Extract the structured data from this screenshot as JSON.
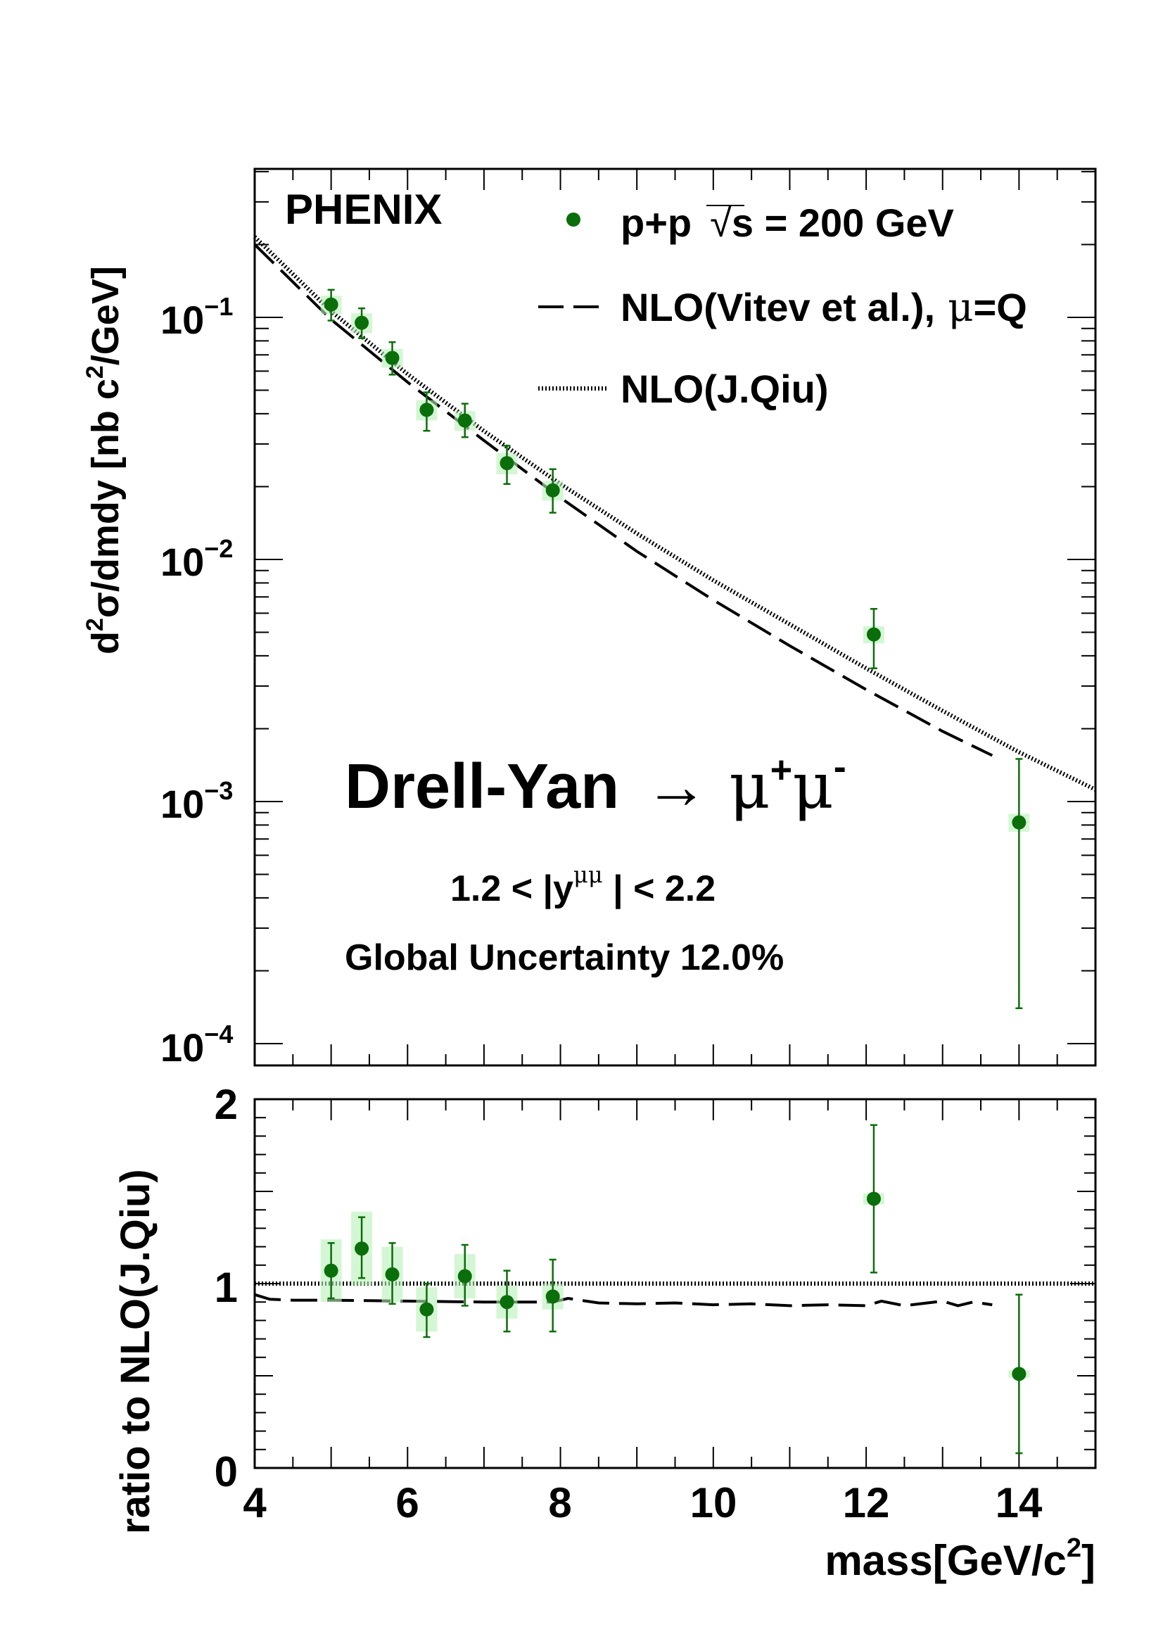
{
  "chart_data": [
    {
      "type": "scatter",
      "yscale": "log",
      "xlim": [
        4,
        15
      ],
      "ylim": [
        0.0001,
        0.42
      ],
      "ylabel": "d²σ/dmdy [nb c²/GeV]",
      "ylabel_parts": {
        "a": "d",
        "b": "2",
        "c": "σ/dmdy [nb c",
        "d": "2",
        "e": "/GeV]"
      },
      "ytick_labels": [
        {
          "value": 0.1,
          "base": "10",
          "exp": "−1"
        },
        {
          "value": 0.01,
          "base": "10",
          "exp": "−2"
        },
        {
          "value": 0.001,
          "base": "10",
          "exp": "−3"
        },
        {
          "value": 0.0001,
          "base": "10",
          "exp": "−4"
        }
      ],
      "annotations": {
        "experiment": "PHENIX",
        "process_main": "Drell-Yan",
        "process_arrow": "→",
        "process_mu1": "μ",
        "process_plus": "+",
        "process_mu2": "μ",
        "process_minus": "-",
        "cut_left": "1.2 < |y",
        "cut_sup": "μμ",
        "cut_right": " | < 2.2",
        "global_uncertainty": "Global Uncertainty 12.0%"
      },
      "legend": {
        "placement": "top-right",
        "data_label_a": "p+p",
        "data_label_sqrt": "√",
        "data_label_b": "s = 200 GeV",
        "vitev_label_a": "NLO(Vitev et al.),",
        "vitev_label_mu": "μ",
        "vitev_label_b": "=Q",
        "qiu_label": "NLO(J.Qiu)"
      },
      "data_points": [
        {
          "x": 5.0,
          "y": 0.113,
          "err_low": 0.016,
          "err_high": 0.017,
          "sys_low": 0.01,
          "sys_high": 0.01
        },
        {
          "x": 5.4,
          "y": 0.095,
          "err_low": 0.013,
          "err_high": 0.014,
          "sys_low": 0.009,
          "sys_high": 0.009
        },
        {
          "x": 5.8,
          "y": 0.068,
          "err_low": 0.01,
          "err_high": 0.011,
          "sys_low": 0.006,
          "sys_high": 0.006
        },
        {
          "x": 6.25,
          "y": 0.0415,
          "err_low": 0.0075,
          "err_high": 0.0075,
          "sys_low": 0.004,
          "sys_high": 0.004
        },
        {
          "x": 6.75,
          "y": 0.0375,
          "err_low": 0.0055,
          "err_high": 0.0065,
          "sys_low": 0.0035,
          "sys_high": 0.0035
        },
        {
          "x": 7.3,
          "y": 0.025,
          "err_low": 0.0045,
          "err_high": 0.0045,
          "sys_low": 0.0025,
          "sys_high": 0.0025
        },
        {
          "x": 7.9,
          "y": 0.0193,
          "err_low": 0.0037,
          "err_high": 0.0043,
          "sys_low": 0.0018,
          "sys_high": 0.0018
        },
        {
          "x": 12.1,
          "y": 0.0049,
          "err_low": 0.00135,
          "err_high": 0.00135,
          "sys_low": 0.0004,
          "sys_high": 0.0004
        },
        {
          "x": 14.0,
          "y": 0.00082,
          "err_low": 0.00068,
          "err_high": 0.00068,
          "sys_low": 7e-05,
          "sys_high": 7e-05
        }
      ],
      "series": [
        {
          "name": "NLO(Vitev et al.), μ=Q",
          "style": "dashed",
          "x": [
            4.0,
            5.0,
            6.0,
            7.0,
            8.0,
            9.0,
            10.0,
            11.0,
            12.0,
            13.0,
            13.65
          ],
          "y": [
            0.2,
            0.098,
            0.054,
            0.031,
            0.018,
            0.0108,
            0.0068,
            0.0044,
            0.0029,
            0.00195,
            0.00155
          ]
        },
        {
          "name": "NLO(J.Qiu)",
          "style": "dotted",
          "x": [
            4.0,
            5.0,
            6.0,
            7.0,
            8.0,
            9.0,
            10.0,
            11.0,
            12.0,
            13.0,
            14.0,
            15.0
          ],
          "y": [
            0.215,
            0.106,
            0.0583,
            0.0339,
            0.0205,
            0.0128,
            0.0082,
            0.0054,
            0.00355,
            0.00237,
            0.0016,
            0.00112
          ]
        }
      ],
      "colors": {
        "data": "#0a6e0a",
        "sys_box": "#b8f0b8"
      }
    },
    {
      "type": "scatter",
      "xlim": [
        4,
        15
      ],
      "ylim": [
        0,
        2
      ],
      "xlabel": "mass[GeV/c²]",
      "xlabel_parts": {
        "a": "mass[GeV/c",
        "b": "2",
        "c": "]"
      },
      "ylabel": "ratio to NLO(J.Qiu)",
      "xtick_labels": [
        {
          "value": 4,
          "label": "4"
        },
        {
          "value": 6,
          "label": "6"
        },
        {
          "value": 8,
          "label": "8"
        },
        {
          "value": 10,
          "label": "10"
        },
        {
          "value": 12,
          "label": "12"
        },
        {
          "value": 14,
          "label": "14"
        }
      ],
      "ytick_labels": [
        {
          "value": 0,
          "label": "0"
        },
        {
          "value": 1,
          "label": "1"
        },
        {
          "value": 2,
          "label": "2"
        }
      ],
      "data_points": [
        {
          "x": 5.0,
          "y": 1.07,
          "err_low": 0.15,
          "err_high": 0.15,
          "sys_low": 0.17,
          "sys_high": 0.17
        },
        {
          "x": 5.4,
          "y": 1.19,
          "err_low": 0.16,
          "err_high": 0.17,
          "sys_low": 0.2,
          "sys_high": 0.2
        },
        {
          "x": 5.8,
          "y": 1.05,
          "err_low": 0.16,
          "err_high": 0.17,
          "sys_low": 0.15,
          "sys_high": 0.15
        },
        {
          "x": 6.25,
          "y": 0.86,
          "err_low": 0.15,
          "err_high": 0.14,
          "sys_low": 0.12,
          "sys_high": 0.12
        },
        {
          "x": 6.75,
          "y": 1.04,
          "err_low": 0.16,
          "err_high": 0.17,
          "sys_low": 0.12,
          "sys_high": 0.12
        },
        {
          "x": 7.3,
          "y": 0.9,
          "err_low": 0.16,
          "err_high": 0.17,
          "sys_low": 0.09,
          "sys_high": 0.09
        },
        {
          "x": 7.9,
          "y": 0.93,
          "err_low": 0.19,
          "err_high": 0.2,
          "sys_low": 0.07,
          "sys_high": 0.07
        },
        {
          "x": 12.1,
          "y": 1.46,
          "err_low": 0.4,
          "err_high": 0.4,
          "sys_low": 0.03,
          "sys_high": 0.03
        },
        {
          "x": 14.0,
          "y": 0.51,
          "err_low": 0.43,
          "err_high": 0.43,
          "sys_low": 0.02,
          "sys_high": 0.02
        }
      ],
      "series": [
        {
          "name": "NLO(J.Qiu)",
          "style": "dotted",
          "x": [
            4.0,
            15.0
          ],
          "y": [
            1.0,
            1.0
          ]
        },
        {
          "name": "NLO(Vitev et al.), μ=Q",
          "style": "dashed",
          "x": [
            4.0,
            4.2,
            4.5,
            5.0,
            6.0,
            7.0,
            7.9,
            8.1,
            8.5,
            9.0,
            9.5,
            10.0,
            10.5,
            11.0,
            11.5,
            12.0,
            12.2,
            12.5,
            12.8,
            13.0,
            13.2,
            13.4,
            13.65
          ],
          "y": [
            0.94,
            0.915,
            0.91,
            0.91,
            0.905,
            0.9,
            0.9,
            0.92,
            0.895,
            0.89,
            0.895,
            0.885,
            0.89,
            0.88,
            0.885,
            0.88,
            0.905,
            0.88,
            0.895,
            0.905,
            0.88,
            0.9,
            0.885
          ]
        }
      ]
    }
  ]
}
